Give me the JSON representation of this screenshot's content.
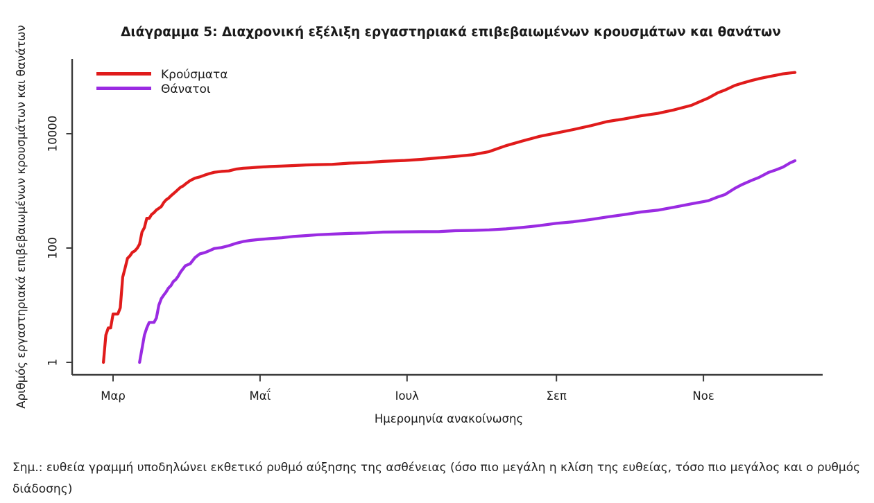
{
  "chart_data": {
    "type": "line",
    "title": "Διάγραμμα 5: Διαχρονική εξέλιξη εργαστηριακά επιβεβαιωμένων κρουσμάτων και θανάτων",
    "xlabel": "Ημερομηνία ανακοίνωσης",
    "ylabel": "Αριθμός εργαστηριακά επιβεβαιωμένων κρουσμάτων και θανάτων",
    "yscale": "log",
    "ylim": [
      1,
      200000
    ],
    "x_range": [
      "2020-02-26",
      "2020-12-09"
    ],
    "grid": "off",
    "legend_position": "top-left",
    "axis_color": "#3c3c3c",
    "yticks": [
      {
        "label": "1",
        "value": 1
      },
      {
        "label": "100",
        "value": 100
      },
      {
        "label": "10000",
        "value": 10000
      }
    ],
    "xticks": [
      {
        "label": "Μαρ",
        "date": "2020-03-01"
      },
      {
        "label": "Μαΐ",
        "date": "2020-05-01"
      },
      {
        "label": "Ιουλ",
        "date": "2020-07-01"
      },
      {
        "label": "Σεπ",
        "date": "2020-09-01"
      },
      {
        "label": "Νοε",
        "date": "2020-11-01"
      }
    ],
    "series": [
      {
        "name": "Κρούσματα",
        "color": "#e01b1b",
        "points": [
          [
            "2020-02-26",
            1
          ],
          [
            "2020-02-27",
            3
          ],
          [
            "2020-02-28",
            4
          ],
          [
            "2020-02-29",
            4
          ],
          [
            "2020-03-01",
            7
          ],
          [
            "2020-03-03",
            7
          ],
          [
            "2020-03-04",
            9
          ],
          [
            "2020-03-05",
            31
          ],
          [
            "2020-03-06",
            45
          ],
          [
            "2020-03-07",
            66
          ],
          [
            "2020-03-08",
            73
          ],
          [
            "2020-03-09",
            84
          ],
          [
            "2020-03-10",
            89
          ],
          [
            "2020-03-11",
            99
          ],
          [
            "2020-03-12",
            117
          ],
          [
            "2020-03-13",
            190
          ],
          [
            "2020-03-14",
            228
          ],
          [
            "2020-03-15",
            331
          ],
          [
            "2020-03-16",
            331
          ],
          [
            "2020-03-17",
            387
          ],
          [
            "2020-03-18",
            418
          ],
          [
            "2020-03-19",
            464
          ],
          [
            "2020-03-20",
            495
          ],
          [
            "2020-03-21",
            530
          ],
          [
            "2020-03-22",
            624
          ],
          [
            "2020-03-23",
            695
          ],
          [
            "2020-03-24",
            743
          ],
          [
            "2020-03-25",
            821
          ],
          [
            "2020-03-26",
            892
          ],
          [
            "2020-03-27",
            966
          ],
          [
            "2020-03-28",
            1061
          ],
          [
            "2020-03-29",
            1156
          ],
          [
            "2020-03-30",
            1212
          ],
          [
            "2020-03-31",
            1314
          ],
          [
            "2020-04-02",
            1514
          ],
          [
            "2020-04-04",
            1673
          ],
          [
            "2020-04-06",
            1755
          ],
          [
            "2020-04-08",
            1884
          ],
          [
            "2020-04-10",
            2011
          ],
          [
            "2020-04-12",
            2114
          ],
          [
            "2020-04-15",
            2192
          ],
          [
            "2020-04-18",
            2235
          ],
          [
            "2020-04-21",
            2401
          ],
          [
            "2020-04-24",
            2490
          ],
          [
            "2020-04-27",
            2534
          ],
          [
            "2020-04-30",
            2591
          ],
          [
            "2020-05-05",
            2663
          ],
          [
            "2020-05-10",
            2716
          ],
          [
            "2020-05-15",
            2770
          ],
          [
            "2020-05-20",
            2840
          ],
          [
            "2020-05-25",
            2878
          ],
          [
            "2020-05-31",
            2915
          ],
          [
            "2020-06-07",
            3058
          ],
          [
            "2020-06-14",
            3121
          ],
          [
            "2020-06-21",
            3287
          ],
          [
            "2020-06-30",
            3409
          ],
          [
            "2020-07-07",
            3562
          ],
          [
            "2020-07-14",
            3772
          ],
          [
            "2020-07-21",
            4007
          ],
          [
            "2020-07-28",
            4279
          ],
          [
            "2020-08-04",
            4855
          ],
          [
            "2020-08-11",
            6177
          ],
          [
            "2020-08-18",
            7472
          ],
          [
            "2020-08-25",
            8987
          ],
          [
            "2020-09-01",
            10317
          ],
          [
            "2020-09-08",
            11832
          ],
          [
            "2020-09-15",
            13730
          ],
          [
            "2020-09-22",
            16286
          ],
          [
            "2020-09-29",
            18123
          ],
          [
            "2020-10-06",
            20541
          ],
          [
            "2020-10-13",
            22652
          ],
          [
            "2020-10-20",
            26301
          ],
          [
            "2020-10-27",
            31399
          ],
          [
            "2020-10-31",
            37196
          ],
          [
            "2020-11-03",
            42080
          ],
          [
            "2020-11-07",
            52254
          ],
          [
            "2020-11-10",
            58187
          ],
          [
            "2020-11-14",
            69675
          ],
          [
            "2020-11-17",
            76403
          ],
          [
            "2020-11-21",
            85261
          ],
          [
            "2020-11-24",
            91619
          ],
          [
            "2020-11-28",
            99306
          ],
          [
            "2020-12-01",
            105271
          ],
          [
            "2020-12-04",
            111537
          ],
          [
            "2020-12-07",
            115471
          ],
          [
            "2020-12-09",
            118045
          ]
        ]
      },
      {
        "name": "Θάνατοι",
        "color": "#9a2be2",
        "points": [
          [
            "2020-03-12",
            1
          ],
          [
            "2020-03-14",
            3
          ],
          [
            "2020-03-15",
            4
          ],
          [
            "2020-03-16",
            5
          ],
          [
            "2020-03-18",
            5
          ],
          [
            "2020-03-19",
            6
          ],
          [
            "2020-03-20",
            10
          ],
          [
            "2020-03-21",
            13
          ],
          [
            "2020-03-22",
            15
          ],
          [
            "2020-03-23",
            17
          ],
          [
            "2020-03-24",
            20
          ],
          [
            "2020-03-25",
            22
          ],
          [
            "2020-03-26",
            26
          ],
          [
            "2020-03-27",
            28
          ],
          [
            "2020-03-28",
            32
          ],
          [
            "2020-03-29",
            38
          ],
          [
            "2020-03-30",
            43
          ],
          [
            "2020-03-31",
            49
          ],
          [
            "2020-04-02",
            53
          ],
          [
            "2020-04-04",
            68
          ],
          [
            "2020-04-06",
            79
          ],
          [
            "2020-04-08",
            83
          ],
          [
            "2020-04-10",
            90
          ],
          [
            "2020-04-12",
            98
          ],
          [
            "2020-04-15",
            102
          ],
          [
            "2020-04-18",
            110
          ],
          [
            "2020-04-21",
            121
          ],
          [
            "2020-04-24",
            130
          ],
          [
            "2020-04-27",
            136
          ],
          [
            "2020-04-30",
            140
          ],
          [
            "2020-05-05",
            146
          ],
          [
            "2020-05-10",
            151
          ],
          [
            "2020-05-15",
            160
          ],
          [
            "2020-05-20",
            165
          ],
          [
            "2020-05-25",
            171
          ],
          [
            "2020-05-31",
            175
          ],
          [
            "2020-06-07",
            180
          ],
          [
            "2020-06-14",
            183
          ],
          [
            "2020-06-21",
            190
          ],
          [
            "2020-06-30",
            192
          ],
          [
            "2020-07-07",
            193
          ],
          [
            "2020-07-14",
            194
          ],
          [
            "2020-07-21",
            201
          ],
          [
            "2020-07-28",
            203
          ],
          [
            "2020-08-04",
            208
          ],
          [
            "2020-08-11",
            216
          ],
          [
            "2020-08-18",
            230
          ],
          [
            "2020-08-25",
            247
          ],
          [
            "2020-09-01",
            271
          ],
          [
            "2020-09-08",
            288
          ],
          [
            "2020-09-15",
            315
          ],
          [
            "2020-09-22",
            349
          ],
          [
            "2020-09-29",
            384
          ],
          [
            "2020-10-06",
            427
          ],
          [
            "2020-10-13",
            459
          ],
          [
            "2020-10-20",
            520
          ],
          [
            "2020-10-27",
            593
          ],
          [
            "2020-11-03",
            673
          ],
          [
            "2020-11-07",
            784
          ],
          [
            "2020-11-10",
            866
          ],
          [
            "2020-11-14",
            1106
          ],
          [
            "2020-11-17",
            1288
          ],
          [
            "2020-11-21",
            1527
          ],
          [
            "2020-11-24",
            1714
          ],
          [
            "2020-11-28",
            2102
          ],
          [
            "2020-12-01",
            2321
          ],
          [
            "2020-12-04",
            2606
          ],
          [
            "2020-12-07",
            3099
          ],
          [
            "2020-12-09",
            3370
          ]
        ]
      }
    ],
    "note": "Σημ.: ευθεία γραμμή υποδηλώνει εκθετικό ρυθμό αύξησης της ασθένειας (όσο πιο μεγάλη η κλίση της ευθείας, τόσο πιο μεγάλος και ο ρυθμός διάδοσης)"
  }
}
